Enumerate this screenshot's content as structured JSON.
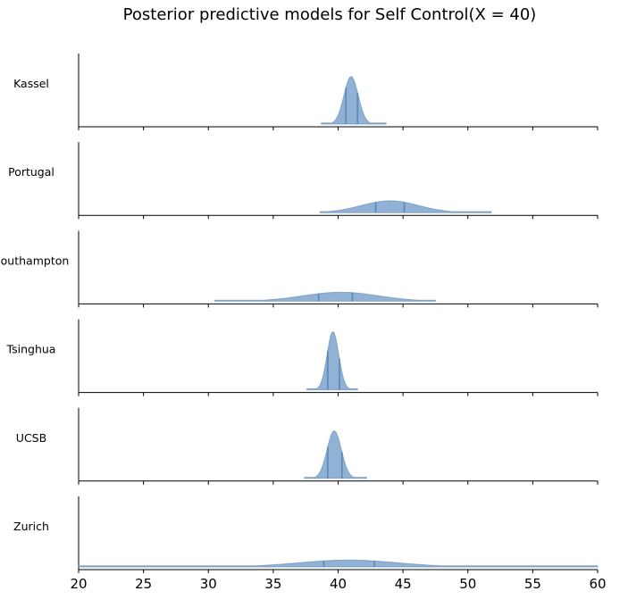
{
  "chart_data": {
    "type": "ridgeline-violin",
    "title": "Posterior predictive models for Self Control(X = 40)",
    "xlim": [
      20,
      60
    ],
    "xticks": [
      20,
      25,
      30,
      35,
      40,
      45,
      50,
      55,
      60
    ],
    "xtick_labels": [
      "20",
      "25",
      "30",
      "35",
      "40",
      "45",
      "50",
      "55",
      "60"
    ],
    "grid": false,
    "legend": "none",
    "fill_color": "#86aad0",
    "stroke_color": "#5a88b8",
    "series": [
      {
        "name": "Kassel",
        "mean": 41.0,
        "sd": 0.55,
        "range": [
          38.7,
          43.7
        ],
        "intervals": [
          40.6,
          41.5
        ]
      },
      {
        "name": "Portugal",
        "mean": 44.0,
        "sd": 2.2,
        "range": [
          38.6,
          51.8
        ],
        "intervals": [
          42.9,
          45.1
        ]
      },
      {
        "name": "Southampton",
        "mean": 40.2,
        "sd": 2.9,
        "range": [
          30.5,
          47.5
        ],
        "intervals": [
          38.5,
          41.1
        ]
      },
      {
        "name": "Tsinghua",
        "mean": 39.6,
        "sd": 0.45,
        "range": [
          37.6,
          41.5
        ],
        "intervals": [
          39.2,
          40.1
        ]
      },
      {
        "name": "UCSB",
        "mean": 39.7,
        "sd": 0.55,
        "range": [
          37.4,
          42.2
        ],
        "intervals": [
          39.2,
          40.3
        ]
      },
      {
        "name": "Zurich",
        "mean": 40.8,
        "sd": 3.8,
        "range": [
          20,
          60
        ],
        "intervals": [
          38.9,
          42.8
        ]
      }
    ]
  }
}
